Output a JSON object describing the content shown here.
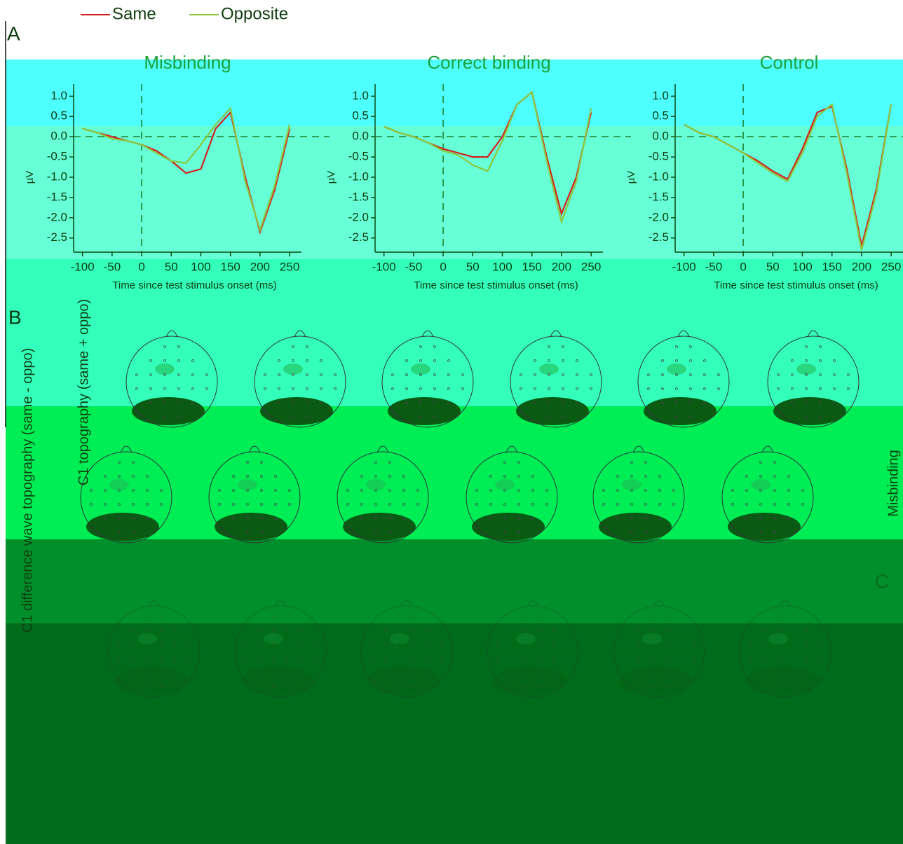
{
  "figure": {
    "panel_labels": [
      "A",
      "B",
      "C"
    ],
    "row_labels": [
      "C1 topography (same + oppo)",
      "C1 difference wave topography (same - oppo)"
    ],
    "side_label": "Misbinding"
  },
  "chart_data": [
    {
      "type": "line",
      "title": "Misbinding",
      "x_label": "Time since test stimulus onset (ms)",
      "y_label": "µV",
      "x": [
        -100,
        -75,
        -50,
        -25,
        0,
        25,
        50,
        75,
        100,
        125,
        150,
        175,
        200,
        225,
        250
      ],
      "xlim": [
        -115,
        270
      ],
      "xticks": [
        -100,
        -50,
        0,
        50,
        100,
        150,
        200,
        250
      ],
      "ylim": [
        -2.85,
        1.3
      ],
      "yticks": [
        {
          "value": 1,
          "label": "1.0"
        },
        0.5,
        {
          "value": 0,
          "label": "0.0"
        },
        -0.5,
        {
          "value": -1,
          "label": "-1.0"
        },
        -1.5,
        {
          "value": -2,
          "label": "-2.0"
        },
        -2.5
      ],
      "series": [
        {
          "name": "Same",
          "color": "#d42020",
          "values": [
            0.2,
            0.1,
            0.0,
            -0.1,
            -0.2,
            -0.35,
            -0.6,
            -0.9,
            -0.8,
            0.2,
            0.6,
            -1.0,
            -2.35,
            -1.3,
            0.2
          ]
        },
        {
          "name": "Opposite",
          "color": "#8cc63f",
          "values": [
            0.2,
            0.1,
            -0.05,
            -0.1,
            -0.2,
            -0.4,
            -0.6,
            -0.65,
            -0.2,
            0.3,
            0.7,
            -1.1,
            -2.3,
            -1.2,
            0.3
          ]
        }
      ]
    },
    {
      "type": "line",
      "title": "Correct binding",
      "x_label": "Time since test stimulus onset (ms)",
      "y_label": "µV",
      "x": [
        -100,
        -75,
        -50,
        -25,
        0,
        25,
        50,
        75,
        100,
        125,
        150,
        175,
        200,
        225,
        250
      ],
      "xlim": [
        -115,
        270
      ],
      "xticks": [
        -100,
        -50,
        0,
        50,
        100,
        150,
        200,
        250
      ],
      "ylim": [
        -2.85,
        1.3
      ],
      "yticks": [
        {
          "value": 1,
          "label": "1.0"
        },
        0.5,
        {
          "value": 0,
          "label": "0.0"
        },
        -0.5,
        {
          "value": -1,
          "label": "-1.0"
        },
        -1.5,
        {
          "value": -2,
          "label": "-2.0"
        },
        -2.5
      ],
      "series": [
        {
          "name": "Same",
          "color": "#d42020",
          "values": [
            0.25,
            0.1,
            0.0,
            -0.15,
            -0.3,
            -0.4,
            -0.5,
            -0.5,
            0.0,
            0.8,
            1.1,
            -0.5,
            -1.9,
            -1.0,
            0.6
          ]
        },
        {
          "name": "Opposite",
          "color": "#8cc63f",
          "values": [
            0.25,
            0.1,
            0.0,
            -0.15,
            -0.35,
            -0.45,
            -0.7,
            -0.85,
            -0.1,
            0.8,
            1.1,
            -0.6,
            -2.1,
            -1.1,
            0.7
          ]
        }
      ]
    },
    {
      "type": "line",
      "title": "Control",
      "x_label": "Time since test stimulus onset (ms)",
      "y_label": "µV",
      "x": [
        -100,
        -75,
        -50,
        -25,
        0,
        25,
        50,
        75,
        100,
        125,
        150,
        175,
        200,
        225,
        250
      ],
      "xlim": [
        -115,
        270
      ],
      "xticks": [
        -100,
        -50,
        0,
        50,
        100,
        150,
        200,
        250
      ],
      "ylim": [
        -2.85,
        1.3
      ],
      "yticks": [
        {
          "value": 1,
          "label": "1.0"
        },
        0.5,
        {
          "value": 0,
          "label": "0.0"
        },
        -0.5,
        {
          "value": -1,
          "label": "-1.0"
        },
        -1.5,
        {
          "value": -2,
          "label": "-2.0"
        },
        -2.5
      ],
      "series": [
        {
          "name": "Same",
          "color": "#d42020",
          "values": [
            0.3,
            0.1,
            0.0,
            -0.2,
            -0.4,
            -0.6,
            -0.85,
            -1.05,
            -0.3,
            0.6,
            0.75,
            -0.8,
            -2.7,
            -1.3,
            0.8
          ]
        },
        {
          "name": "Opposite",
          "color": "#8cc63f",
          "values": [
            0.3,
            0.1,
            0.0,
            -0.2,
            -0.4,
            -0.65,
            -0.9,
            -1.1,
            -0.4,
            0.5,
            0.8,
            -0.9,
            -2.8,
            -1.4,
            0.8
          ]
        }
      ]
    }
  ]
}
